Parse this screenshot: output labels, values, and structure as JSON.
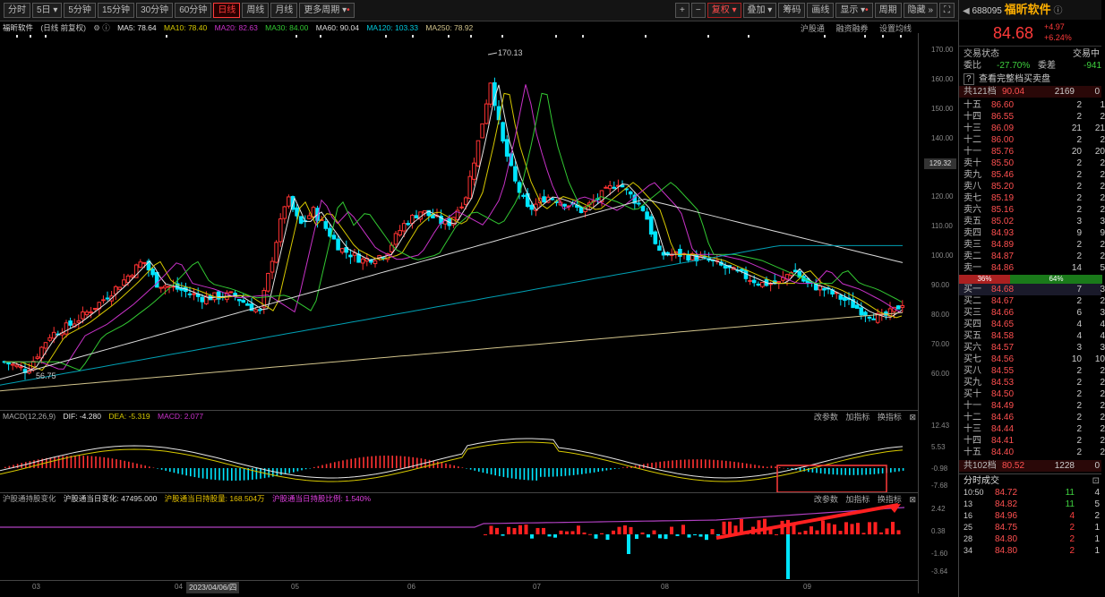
{
  "toolbar": {
    "periods": [
      "分时",
      "5日",
      "5分钟",
      "15分钟",
      "30分钟",
      "60分钟",
      "日线",
      "周线",
      "月线",
      "更多周期"
    ],
    "active": "日线",
    "right": [
      "+",
      "−",
      "复权",
      "叠加",
      "筹码",
      "画线",
      "显示",
      "周期",
      "隐藏"
    ],
    "more_arrow": "»",
    "expand": "⛶"
  },
  "info": {
    "name": "福昕软件",
    "period": "(日线 前复权)",
    "ma5": "MA5: 78.64",
    "ma10": "MA10: 78.40",
    "ma20": "MA20: 82.63",
    "ma30": "MA30: 84.00",
    "ma60": "MA60: 90.04",
    "ma120": "MA120: 103.33",
    "ma250": "MA250: 78.92",
    "tools": [
      "沪股通",
      "融资融券",
      "设置均线"
    ]
  },
  "colors": {
    "up": "#ff3232",
    "down": "#00e5ff",
    "ma5": "#e6e6e6",
    "ma10": "#d6c800",
    "ma20": "#c832c8",
    "ma30": "#32c832",
    "ma60": "#dcdcdc",
    "ma120": "#00a0b4",
    "ma250": "#d2c48c"
  },
  "price_axis": {
    "ticks": [
      "170.00",
      "160.00",
      "150.00",
      "140.00",
      "130.00",
      "120.00",
      "110.00",
      "100.00",
      "90.00",
      "80.00",
      "70.00",
      "60.00"
    ],
    "cursor": "129.32",
    "high": "170.13",
    "low": "56.75"
  },
  "macd": {
    "header": "MACD(12,26,9)",
    "dif": "DIF: -4.280",
    "dea": "DEA: -5.319",
    "macd": "MACD: 2.077",
    "ticks": [
      "12.43",
      "5.53",
      "-0.98",
      "-7.68"
    ],
    "buttons": [
      "改参数",
      "加指标",
      "换指标"
    ]
  },
  "hk": {
    "header": "沪股通持股变化",
    "l1": "沪股通当日变化: 47495.000",
    "l2": "沪股通当日持股量: 168.504万",
    "l3": "沪股通当日持股比例: 1.540%",
    "ticks": [
      "2.42",
      "0.38",
      "-1.60",
      "-3.64"
    ],
    "buttons": [
      "改参数",
      "加指标",
      "换指标"
    ]
  },
  "xaxis": {
    "labels": [
      "03",
      "04",
      "05",
      "06",
      "07",
      "08",
      "09"
    ],
    "date": "2023/04/06/四"
  },
  "quote": {
    "code": "688095",
    "name": "福昕软件",
    "price": "84.68",
    "change": "+4.97",
    "pct": "+6.24%",
    "status_label": "交易状态",
    "status": "交易中",
    "wb_label": "委比",
    "wb": "-27.70%",
    "wc_label": "委差",
    "wc": "-941",
    "full_book": "查看完整档买卖盘",
    "total_ask": "共121档",
    "ask_price": "90.04",
    "ask_vol": "2169",
    "ask_extra": "0",
    "ratio_left": "36%",
    "ratio_right": "64%",
    "total_bid": "共102档",
    "bid_price": "80.52",
    "bid_vol": "1228",
    "bid_extra": "0"
  },
  "asks": [
    {
      "label": "十五",
      "price": "86.60",
      "vol": "2",
      "v2": "1"
    },
    {
      "label": "十四",
      "price": "86.55",
      "vol": "2",
      "v2": "2"
    },
    {
      "label": "十三",
      "price": "86.09",
      "vol": "21",
      "v2": "21"
    },
    {
      "label": "十二",
      "price": "86.00",
      "vol": "2",
      "v2": "2"
    },
    {
      "label": "十一",
      "price": "85.76",
      "vol": "20",
      "v2": "20"
    },
    {
      "label": "卖十",
      "price": "85.50",
      "vol": "2",
      "v2": "2"
    },
    {
      "label": "卖九",
      "price": "85.46",
      "vol": "2",
      "v2": "2"
    },
    {
      "label": "卖八",
      "price": "85.20",
      "vol": "2",
      "v2": "2"
    },
    {
      "label": "卖七",
      "price": "85.19",
      "vol": "2",
      "v2": "2"
    },
    {
      "label": "卖六",
      "price": "85.16",
      "vol": "2",
      "v2": "2"
    },
    {
      "label": "卖五",
      "price": "85.02",
      "vol": "3",
      "v2": "3"
    },
    {
      "label": "卖四",
      "price": "84.93",
      "vol": "9",
      "v2": "9"
    },
    {
      "label": "卖三",
      "price": "84.89",
      "vol": "2",
      "v2": "2"
    },
    {
      "label": "卖二",
      "price": "84.87",
      "vol": "2",
      "v2": "2"
    },
    {
      "label": "卖一",
      "price": "84.86",
      "vol": "14",
      "v2": "5"
    }
  ],
  "bids": [
    {
      "label": "买一",
      "price": "84.68",
      "vol": "7",
      "v2": "3"
    },
    {
      "label": "买二",
      "price": "84.67",
      "vol": "2",
      "v2": "2"
    },
    {
      "label": "买三",
      "price": "84.66",
      "vol": "6",
      "v2": "3"
    },
    {
      "label": "买四",
      "price": "84.65",
      "vol": "4",
      "v2": "4"
    },
    {
      "label": "买五",
      "price": "84.58",
      "vol": "4",
      "v2": "4"
    },
    {
      "label": "买六",
      "price": "84.57",
      "vol": "3",
      "v2": "3"
    },
    {
      "label": "买七",
      "price": "84.56",
      "vol": "10",
      "v2": "10"
    },
    {
      "label": "买八",
      "price": "84.55",
      "vol": "2",
      "v2": "2"
    },
    {
      "label": "买九",
      "price": "84.53",
      "vol": "2",
      "v2": "2"
    },
    {
      "label": "买十",
      "price": "84.50",
      "vol": "2",
      "v2": "2"
    },
    {
      "label": "十一",
      "price": "84.49",
      "vol": "2",
      "v2": "2"
    },
    {
      "label": "十二",
      "price": "84.46",
      "vol": "2",
      "v2": "2"
    },
    {
      "label": "十三",
      "price": "84.44",
      "vol": "2",
      "v2": "2"
    },
    {
      "label": "十四",
      "price": "84.41",
      "vol": "2",
      "v2": "2"
    },
    {
      "label": "十五",
      "price": "84.40",
      "vol": "2",
      "v2": "2"
    }
  ],
  "trades_title": "分时成交",
  "trades": [
    {
      "time": "10:50",
      "price": "84.72",
      "vol": "11",
      "n": "4"
    },
    {
      "time": "13",
      "price": "84.82",
      "vol": "11",
      "n": "5"
    },
    {
      "time": "16",
      "price": "84.96",
      "vol": "4",
      "n": "2"
    },
    {
      "time": "25",
      "price": "84.75",
      "vol": "2",
      "n": "1"
    },
    {
      "time": "28",
      "price": "84.80",
      "vol": "2",
      "n": "1"
    },
    {
      "time": "34",
      "price": "84.80",
      "vol": "2",
      "n": "1"
    }
  ]
}
